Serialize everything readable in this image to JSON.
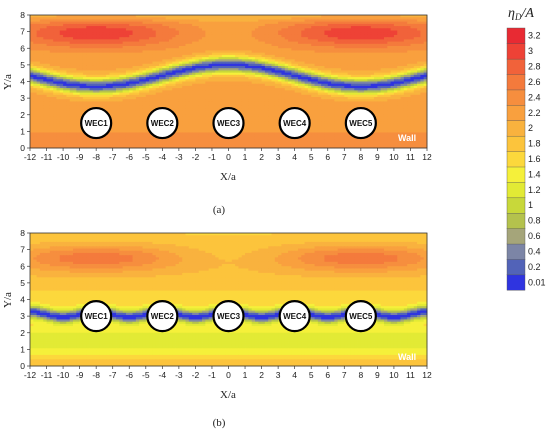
{
  "chart_data": [
    {
      "type": "heatmap",
      "panel": "(a)",
      "xlabel": "X/a",
      "ylabel": "Y/a",
      "xlim": [
        -12,
        12
      ],
      "ylim": [
        0,
        8
      ],
      "x_ticks": [
        -12,
        -11,
        -10,
        -9,
        -8,
        -7,
        -6,
        -5,
        -4,
        -3,
        -2,
        -1,
        0,
        1,
        2,
        3,
        4,
        5,
        6,
        7,
        8,
        9,
        10,
        11,
        12
      ],
      "y_ticks": [
        0,
        1,
        2,
        3,
        4,
        5,
        6,
        7,
        8
      ],
      "wecs": [
        {
          "label": "WEC1",
          "x": -8,
          "y": 1.5
        },
        {
          "label": "WEC2",
          "x": -4,
          "y": 1.5
        },
        {
          "label": "WEC3",
          "x": 0,
          "y": 1.5
        },
        {
          "label": "WEC4",
          "x": 4,
          "y": 1.5
        },
        {
          "label": "WEC5",
          "x": 8,
          "y": 1.5
        }
      ],
      "wall_label": "Wall",
      "wave_field": {
        "min_band_center_y": [
          3.7,
          5.0
        ],
        "min_band_period": 16,
        "max_band_center_y": 7.0
      }
    },
    {
      "type": "heatmap",
      "panel": "(b)",
      "xlabel": "X/a",
      "ylabel": "Y/a",
      "xlim": [
        -12,
        12
      ],
      "ylim": [
        0,
        8
      ],
      "x_ticks": [
        -12,
        -11,
        -10,
        -9,
        -8,
        -7,
        -6,
        -5,
        -4,
        -3,
        -2,
        -1,
        0,
        1,
        2,
        3,
        4,
        5,
        6,
        7,
        8,
        9,
        10,
        11,
        12
      ],
      "y_ticks": [
        0,
        1,
        2,
        3,
        4,
        5,
        6,
        7,
        8
      ],
      "wecs": [
        {
          "label": "WEC1",
          "x": -8,
          "y": 3
        },
        {
          "label": "WEC2",
          "x": -4,
          "y": 3
        },
        {
          "label": "WEC3",
          "x": 0,
          "y": 3
        },
        {
          "label": "WEC4",
          "x": 4,
          "y": 3
        },
        {
          "label": "WEC5",
          "x": 8,
          "y": 3
        }
      ],
      "wall_label": "Wall",
      "wave_field": {
        "min_band_center_y": [
          3.0,
          3.2
        ],
        "min_band_period": 4,
        "max_band_center_y": 6.5
      }
    }
  ],
  "colorbar": {
    "title": "η_D/A",
    "levels": [
      0.01,
      0.2,
      0.4,
      0.6,
      0.8,
      1,
      1.2,
      1.4,
      1.6,
      1.8,
      2,
      2.2,
      2.4,
      2.6,
      2.8,
      3,
      3.2
    ],
    "labels": [
      "0.01",
      "0.2",
      "0.4",
      "0.6",
      "0.8",
      "1",
      "1.2",
      "1.4",
      "1.6",
      "1.8",
      "2",
      "2.2",
      "2.4",
      "2.6",
      "2.8",
      "3",
      "3.2"
    ],
    "colors": [
      "#2f34e0",
      "#5263b8",
      "#7c85a6",
      "#a5a57a",
      "#b4c24d",
      "#c8d83a",
      "#e2ea35",
      "#f5f03a",
      "#fcd83c",
      "#fcc43c",
      "#f9b23e",
      "#f9a03e",
      "#f68e3e",
      "#f47a3c",
      "#f1623a",
      "#ee4236",
      "#e82a33"
    ]
  }
}
